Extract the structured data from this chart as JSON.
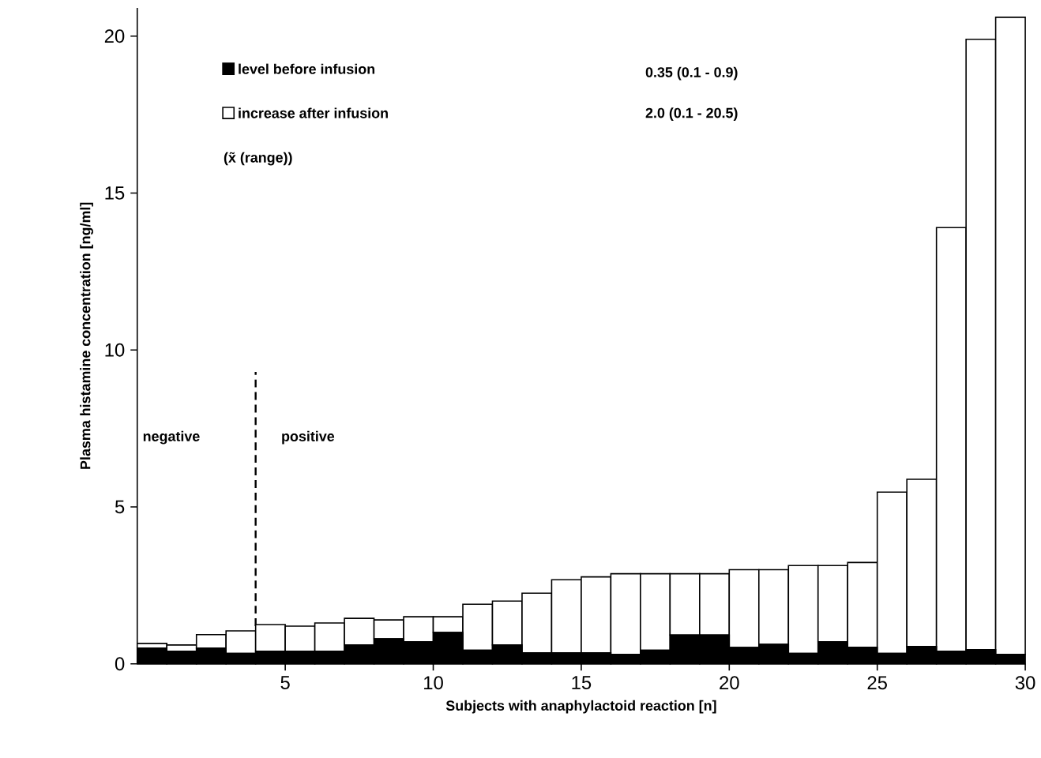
{
  "chart_data": {
    "type": "bar",
    "stacked": true,
    "xlabel": "Subjects with anaphylactoid reaction [n]",
    "ylabel": "Plasma histamine concentration [ng/ml]",
    "x": [
      0.5,
      1.5,
      2.5,
      3.5,
      4.5,
      5.5,
      6.5,
      7.5,
      8.5,
      9.5,
      10.5,
      11.5,
      12.5,
      13.5,
      14.5,
      15.5,
      16.5,
      17.5,
      18.5,
      19.5,
      20.5,
      21.5,
      22.5,
      23.5,
      24.5,
      25.5,
      26.5,
      27.5,
      28.5,
      29.5
    ],
    "series": [
      {
        "name": "level before infusion",
        "color": "#000000",
        "values": [
          0.5,
          0.4,
          0.5,
          0.33,
          0.4,
          0.4,
          0.4,
          0.6,
          0.8,
          0.7,
          1.0,
          0.43,
          0.6,
          0.35,
          0.35,
          0.35,
          0.3,
          0.43,
          0.92,
          0.92,
          0.52,
          0.62,
          0.33,
          0.7,
          0.53,
          0.33,
          0.55,
          0.4,
          0.45,
          0.3
        ]
      },
      {
        "name": "increase after infusion",
        "color": "#ffffff",
        "values": [
          0.15,
          0.2,
          0.43,
          0.72,
          0.85,
          0.8,
          0.9,
          0.85,
          0.6,
          0.8,
          0.5,
          1.47,
          1.4,
          1.9,
          2.33,
          2.42,
          2.57,
          2.44,
          1.95,
          1.95,
          2.48,
          2.38,
          2.8,
          2.43,
          2.7,
          5.14,
          5.33,
          13.5,
          19.45,
          20.3
        ]
      }
    ],
    "xlim": [
      0,
      30
    ],
    "ylim": [
      0,
      20.9
    ],
    "xticks": [
      5,
      10,
      15,
      20,
      25,
      30
    ],
    "yticks": [
      0,
      5,
      10,
      15,
      20
    ],
    "legend": "top left",
    "ref_lines": [
      {
        "axis": "x",
        "value": 4,
        "line_style": "dashed"
      }
    ],
    "annotations": [
      "0.35 (0.1 - 0.9)",
      "2.0 (0.1 - 20.5)",
      "(x̃ (range))",
      "negative",
      "positive"
    ]
  }
}
